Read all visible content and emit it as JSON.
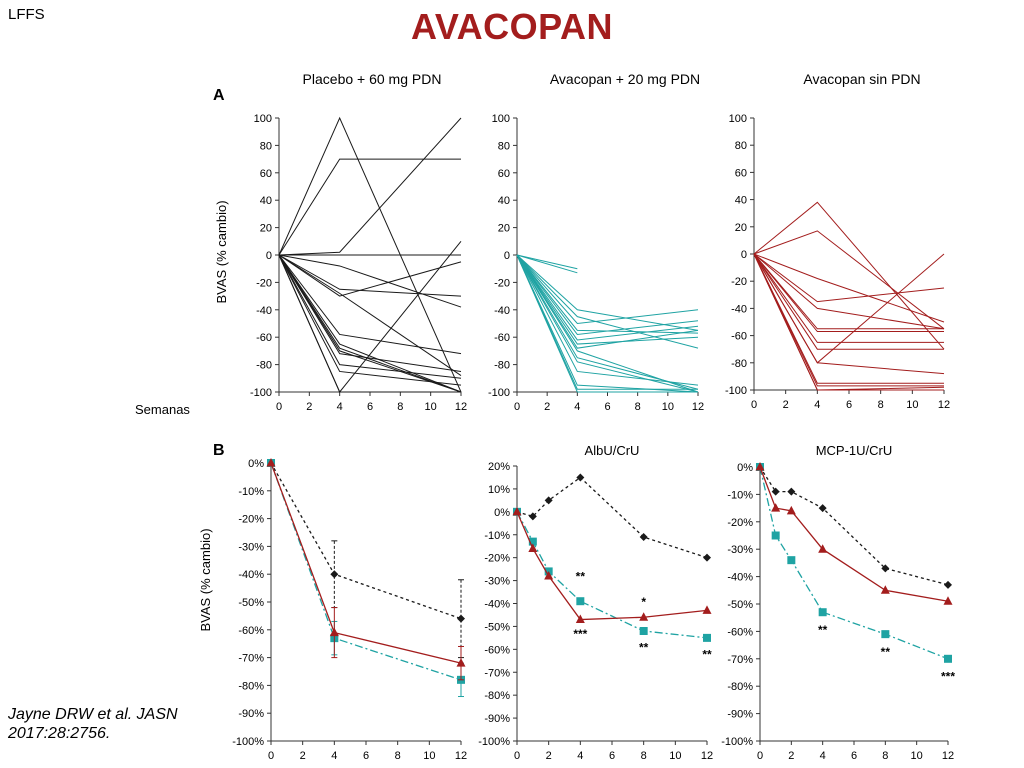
{
  "header": {
    "tag": "LFFS",
    "title": "AVACOPAN"
  },
  "citation": {
    "line1": "Jayne DRW et al. JASN",
    "line2": "2017:28:2756."
  },
  "colors": {
    "placebo": "#1a1a1a",
    "avacopan_pdn": "#1fa3a3",
    "avacopan_no_pdn": "#a31d1d",
    "title": "#a31d1d"
  },
  "labels": {
    "panel_a": "A",
    "panel_b": "B",
    "ylabel": "BVAS (% cambio)",
    "xlabel": "Semanas",
    "col1": "Placebo + 60 mg PDN",
    "col2": "Avacopan + 20 mg PDN",
    "col3": "Avacopan sin PDN",
    "b2_title": "AlbU/CrU",
    "b3_title": "MCP-1U/CrU"
  },
  "chart_data": [
    {
      "id": "a1",
      "type": "line",
      "title": "Placebo + 60 mg PDN",
      "ylabel": "BVAS (% cambio)",
      "xlabel": "Semanas",
      "xticks": [
        0,
        2,
        4,
        6,
        8,
        10,
        12
      ],
      "yticks": [
        100,
        80,
        60,
        40,
        20,
        0,
        -20,
        -40,
        -60,
        -80,
        -100
      ],
      "xlim": [
        0,
        12
      ],
      "ylim": [
        -100,
        100
      ],
      "series": [
        {
          "x": [
            0,
            4,
            12
          ],
          "y": [
            0,
            100,
            -100
          ]
        },
        {
          "x": [
            0,
            4,
            12
          ],
          "y": [
            0,
            70,
            70
          ]
        },
        {
          "x": [
            0,
            4,
            12
          ],
          "y": [
            0,
            2,
            100
          ]
        },
        {
          "x": [
            0,
            4,
            12
          ],
          "y": [
            0,
            0,
            0
          ]
        },
        {
          "x": [
            0,
            4,
            12
          ],
          "y": [
            0,
            -8,
            -38
          ]
        },
        {
          "x": [
            0,
            4,
            12
          ],
          "y": [
            0,
            -25,
            -30
          ]
        },
        {
          "x": [
            0,
            4,
            12
          ],
          "y": [
            0,
            -28,
            -88
          ]
        },
        {
          "x": [
            0,
            4,
            12
          ],
          "y": [
            0,
            -30,
            -5
          ]
        },
        {
          "x": [
            0,
            4,
            12
          ],
          "y": [
            0,
            -58,
            -72
          ]
        },
        {
          "x": [
            0,
            4,
            12
          ],
          "y": [
            0,
            -65,
            -100
          ]
        },
        {
          "x": [
            0,
            4,
            12
          ],
          "y": [
            0,
            -68,
            -100
          ]
        },
        {
          "x": [
            0,
            4,
            12
          ],
          "y": [
            0,
            -70,
            -100
          ]
        },
        {
          "x": [
            0,
            4,
            12
          ],
          "y": [
            0,
            -72,
            -85
          ]
        },
        {
          "x": [
            0,
            4,
            12
          ],
          "y": [
            0,
            -80,
            -90
          ]
        },
        {
          "x": [
            0,
            4,
            12
          ],
          "y": [
            0,
            -85,
            -95
          ]
        },
        {
          "x": [
            0,
            4,
            12
          ],
          "y": [
            0,
            -100,
            -100
          ]
        },
        {
          "x": [
            0,
            4,
            12
          ],
          "y": [
            0,
            -100,
            10
          ]
        }
      ]
    },
    {
      "id": "a2",
      "type": "line",
      "title": "Avacopan + 20 mg PDN",
      "xticks": [
        0,
        2,
        4,
        6,
        8,
        10,
        12
      ],
      "yticks": [
        100,
        80,
        60,
        40,
        20,
        0,
        -20,
        -40,
        -60,
        -80,
        -100
      ],
      "xlim": [
        0,
        12
      ],
      "ylim": [
        -100,
        100
      ],
      "series": [
        {
          "x": [
            0,
            4
          ],
          "y": [
            0,
            -10
          ]
        },
        {
          "x": [
            0,
            4
          ],
          "y": [
            0,
            -13
          ]
        },
        {
          "x": [
            0,
            4,
            12
          ],
          "y": [
            0,
            -40,
            -55
          ]
        },
        {
          "x": [
            0,
            4,
            12
          ],
          "y": [
            0,
            -45,
            -68
          ]
        },
        {
          "x": [
            0,
            4,
            12
          ],
          "y": [
            0,
            -50,
            -40
          ]
        },
        {
          "x": [
            0,
            4,
            12
          ],
          "y": [
            0,
            -55,
            -57
          ]
        },
        {
          "x": [
            0,
            4,
            12
          ],
          "y": [
            0,
            -58,
            -48
          ]
        },
        {
          "x": [
            0,
            4,
            12
          ],
          "y": [
            0,
            -62,
            -52
          ]
        },
        {
          "x": [
            0,
            4,
            12
          ],
          "y": [
            0,
            -65,
            -60
          ]
        },
        {
          "x": [
            0,
            4,
            12
          ],
          "y": [
            0,
            -68,
            -55
          ]
        },
        {
          "x": [
            0,
            4,
            12
          ],
          "y": [
            0,
            -70,
            -100
          ]
        },
        {
          "x": [
            0,
            4,
            12
          ],
          "y": [
            0,
            -75,
            -98
          ]
        },
        {
          "x": [
            0,
            4,
            12
          ],
          "y": [
            0,
            -78,
            -100
          ]
        },
        {
          "x": [
            0,
            4,
            12
          ],
          "y": [
            0,
            -85,
            -95
          ]
        },
        {
          "x": [
            0,
            4,
            12
          ],
          "y": [
            0,
            -95,
            -100
          ]
        },
        {
          "x": [
            0,
            4,
            12
          ],
          "y": [
            0,
            -98,
            -98
          ]
        },
        {
          "x": [
            0,
            4,
            12
          ],
          "y": [
            0,
            -100,
            -100
          ]
        }
      ]
    },
    {
      "id": "a3",
      "type": "line",
      "title": "Avacopan sin PDN",
      "xticks": [
        0,
        2,
        4,
        6,
        8,
        10,
        12
      ],
      "yticks": [
        100,
        80,
        60,
        40,
        20,
        0,
        -20,
        -40,
        -60,
        -80,
        -100
      ],
      "xlim": [
        0,
        12
      ],
      "ylim": [
        -100,
        100
      ],
      "series": [
        {
          "x": [
            0,
            4,
            12
          ],
          "y": [
            0,
            38,
            -70
          ]
        },
        {
          "x": [
            0,
            4,
            12
          ],
          "y": [
            0,
            17,
            -55
          ]
        },
        {
          "x": [
            0,
            4,
            12
          ],
          "y": [
            0,
            -18,
            -50
          ]
        },
        {
          "x": [
            0,
            4,
            12
          ],
          "y": [
            0,
            -35,
            -25
          ]
        },
        {
          "x": [
            0,
            4,
            12
          ],
          "y": [
            0,
            -40,
            -55
          ]
        },
        {
          "x": [
            0,
            4,
            12
          ],
          "y": [
            0,
            -55,
            -55
          ]
        },
        {
          "x": [
            0,
            4,
            12
          ],
          "y": [
            0,
            -57,
            -57
          ]
        },
        {
          "x": [
            0,
            4,
            12
          ],
          "y": [
            0,
            -65,
            -65
          ]
        },
        {
          "x": [
            0,
            4,
            12
          ],
          "y": [
            0,
            -70,
            -70
          ]
        },
        {
          "x": [
            0,
            4,
            12
          ],
          "y": [
            0,
            -80,
            0
          ]
        },
        {
          "x": [
            0,
            4,
            12
          ],
          "y": [
            0,
            -80,
            -88
          ]
        },
        {
          "x": [
            0,
            4,
            12
          ],
          "y": [
            0,
            -95,
            -95
          ]
        },
        {
          "x": [
            0,
            4,
            12
          ],
          "y": [
            0,
            -97,
            -97
          ]
        },
        {
          "x": [
            0,
            4,
            12
          ],
          "y": [
            0,
            -100,
            -98
          ]
        },
        {
          "x": [
            0,
            4,
            12
          ],
          "y": [
            0,
            -100,
            -100
          ]
        }
      ]
    },
    {
      "id": "b1",
      "type": "line",
      "title": "",
      "ylabel": "BVAS (% cambio)",
      "xticks": [
        0,
        2,
        4,
        6,
        8,
        10,
        12
      ],
      "yticks": [
        "0%",
        "-10%",
        "-20%",
        "-30%",
        "-40%",
        "-50%",
        "-60%",
        "-70%",
        "-80%",
        "-90%",
        "-100%"
      ],
      "xlim": [
        0,
        12
      ],
      "ylim": [
        -100,
        0
      ],
      "series": [
        {
          "name": "Placebo + 60 mg PDN",
          "marker": "diamond",
          "dash": "short",
          "x": [
            0,
            4,
            12
          ],
          "y": [
            0,
            -40,
            -56
          ],
          "err": [
            0,
            12,
            14
          ]
        },
        {
          "name": "Avacopan + 20 mg PDN",
          "marker": "square",
          "dash": "dashdot",
          "x": [
            0,
            4,
            12
          ],
          "y": [
            0,
            -63,
            -78
          ],
          "err": [
            0,
            6,
            6
          ]
        },
        {
          "name": "Avacopan sin PDN",
          "marker": "triangle",
          "dash": "solid",
          "x": [
            0,
            4,
            12
          ],
          "y": [
            0,
            -61,
            -72
          ],
          "err": [
            0,
            9,
            6
          ]
        }
      ],
      "annotations": []
    },
    {
      "id": "b2",
      "type": "line",
      "title": "AlbU/CrU",
      "xticks": [
        0,
        2,
        4,
        6,
        8,
        10,
        12
      ],
      "yticks": [
        "20%",
        "10%",
        "0%",
        "-10%",
        "-20%",
        "-30%",
        "-40%",
        "-50%",
        "-60%",
        "-70%",
        "-80%",
        "-90%",
        "-100%"
      ],
      "xlim": [
        0,
        12
      ],
      "ylim": [
        -100,
        20
      ],
      "series": [
        {
          "name": "Placebo + 60 mg PDN",
          "marker": "diamond",
          "dash": "short",
          "x": [
            0,
            1,
            2,
            4,
            8,
            12
          ],
          "y": [
            0,
            -2,
            5,
            15,
            -11,
            -20
          ]
        },
        {
          "name": "Avacopan + 20 mg PDN",
          "marker": "square",
          "dash": "dashdot",
          "x": [
            0,
            1,
            2,
            4,
            8,
            12
          ],
          "y": [
            0,
            -13,
            -26,
            -39,
            -52,
            -55
          ]
        },
        {
          "name": "Avacopan sin PDN",
          "marker": "triangle",
          "dash": "solid",
          "x": [
            0,
            1,
            2,
            4,
            8,
            12
          ],
          "y": [
            0,
            -16,
            -28,
            -47,
            -46,
            -43
          ]
        }
      ],
      "annotations": [
        {
          "text": "**",
          "x": 4,
          "y": -30
        },
        {
          "text": "***",
          "x": 4,
          "y": -55
        },
        {
          "text": "*",
          "x": 8,
          "y": -41
        },
        {
          "text": "**",
          "x": 8,
          "y": -61
        },
        {
          "text": "**",
          "x": 12,
          "y": -64
        }
      ]
    },
    {
      "id": "b3",
      "type": "line",
      "title": "MCP-1U/CrU",
      "xticks": [
        0,
        2,
        4,
        6,
        8,
        10,
        12
      ],
      "yticks": [
        "0%",
        "-10%",
        "-20%",
        "-30%",
        "-40%",
        "-50%",
        "-60%",
        "-70%",
        "-80%",
        "-90%",
        "-100%"
      ],
      "xlim": [
        0,
        12
      ],
      "ylim": [
        -100,
        0
      ],
      "series": [
        {
          "name": "Placebo + 60 mg PDN",
          "marker": "diamond",
          "dash": "short",
          "x": [
            0,
            1,
            2,
            4,
            8,
            12
          ],
          "y": [
            0,
            -9,
            -9,
            -15,
            -37,
            -43
          ]
        },
        {
          "name": "Avacopan + 20 mg PDN",
          "marker": "square",
          "dash": "dashdot",
          "x": [
            0,
            1,
            2,
            4,
            8,
            12
          ],
          "y": [
            0,
            -25,
            -34,
            -53,
            -61,
            -70
          ]
        },
        {
          "name": "Avacopan sin PDN",
          "marker": "triangle",
          "dash": "solid",
          "x": [
            0,
            1,
            2,
            4,
            8,
            12
          ],
          "y": [
            0,
            -15,
            -16,
            -30,
            -45,
            -49
          ]
        }
      ],
      "annotations": [
        {
          "text": "**",
          "x": 4,
          "y": -61
        },
        {
          "text": "**",
          "x": 8,
          "y": -69
        },
        {
          "text": "***",
          "x": 12,
          "y": -78
        }
      ]
    }
  ]
}
